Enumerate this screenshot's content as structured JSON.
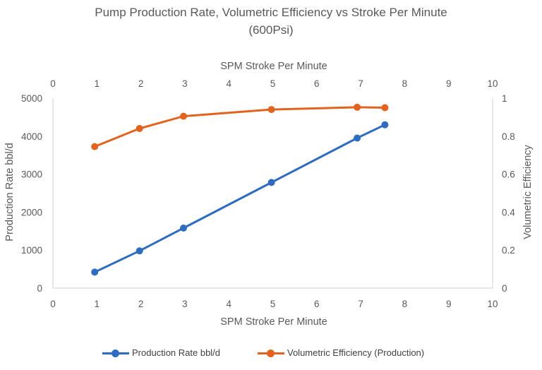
{
  "chart_data": {
    "type": "line",
    "title_line1": "Pump Production Rate, Volumetric Efficiency vs Stroke Per Minute",
    "title_line2": "(600Psi)",
    "xlabel_top": "SPM Stroke Per Minute",
    "xlabel_bottom": "SPM Stroke Per Minute",
    "ylabel_left": "Production Rate bbl/d",
    "ylabel_right": "Volumetric Efficiency",
    "xlim": [
      0,
      10
    ],
    "ylim_left": [
      0,
      5000
    ],
    "ylim_right": [
      0,
      1
    ],
    "x_ticks": [
      "0",
      "1",
      "2",
      "3",
      "4",
      "5",
      "6",
      "7",
      "8",
      "9",
      "10"
    ],
    "y_left_ticks": [
      "0",
      "1000",
      "2000",
      "3000",
      "4000",
      "5000"
    ],
    "y_right_ticks": [
      "0",
      "0.2",
      "0.4",
      "0.6",
      "0.8",
      "1"
    ],
    "grid": false,
    "legend_position": "bottom",
    "series": [
      {
        "name": "Production Rate bbl/d",
        "axis": "left",
        "color": "#2E6CC0",
        "x": [
          0.95,
          1.97,
          2.97,
          4.97,
          6.92,
          7.55
        ],
        "y": [
          420,
          980,
          1580,
          2780,
          3950,
          4300
        ]
      },
      {
        "name": "Volumetric Efficiency (Production)",
        "axis": "right",
        "color": "#E2631E",
        "x": [
          0.95,
          1.97,
          2.97,
          4.97,
          6.92,
          7.55
        ],
        "y": [
          0.745,
          0.84,
          0.905,
          0.94,
          0.952,
          0.95
        ]
      }
    ]
  }
}
